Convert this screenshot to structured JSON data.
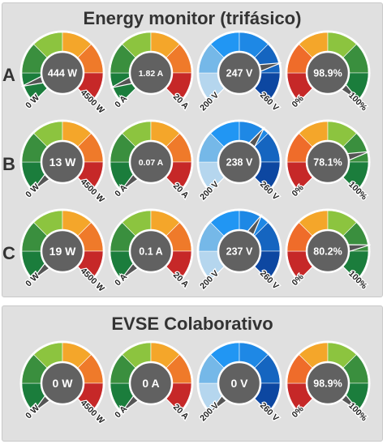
{
  "monitor": {
    "title": "Energy monitor (trifásico)",
    "rows": [
      {
        "label": "A",
        "gauges": [
          {
            "type": "power",
            "display": "444 W",
            "min_label": "0 W",
            "max_label": "4500 W",
            "fraction": 0.099
          },
          {
            "type": "current",
            "display": "1.82 A",
            "min_label": "0 A",
            "max_label": "20 A",
            "fraction": 0.091
          },
          {
            "type": "voltage",
            "display": "247 V",
            "min_label": "200 V",
            "max_label": "260 V",
            "fraction": 0.783
          },
          {
            "type": "pf",
            "display": "98.9%",
            "min_label": "0%",
            "max_label": "100%",
            "fraction": 0.989
          }
        ]
      },
      {
        "label": "B",
        "gauges": [
          {
            "type": "power",
            "display": "13 W",
            "min_label": "0 W",
            "max_label": "4500 W",
            "fraction": 0.003
          },
          {
            "type": "current",
            "display": "0.07 A",
            "min_label": "0 A",
            "max_label": "20 A",
            "fraction": 0.0035
          },
          {
            "type": "voltage",
            "display": "238 V",
            "min_label": "200 V",
            "max_label": "260 V",
            "fraction": 0.633
          },
          {
            "type": "pf",
            "display": "78.1%",
            "min_label": "0%",
            "max_label": "100%",
            "fraction": 0.781
          }
        ]
      },
      {
        "label": "C",
        "gauges": [
          {
            "type": "power",
            "display": "19 W",
            "min_label": "0 W",
            "max_label": "4500 W",
            "fraction": 0.004
          },
          {
            "type": "current",
            "display": "0.1 A",
            "min_label": "0 A",
            "max_label": "20 A",
            "fraction": 0.005
          },
          {
            "type": "voltage",
            "display": "237 V",
            "min_label": "200 V",
            "max_label": "260 V",
            "fraction": 0.617
          },
          {
            "type": "pf",
            "display": "80.2%",
            "min_label": "0%",
            "max_label": "100%",
            "fraction": 0.802
          }
        ]
      }
    ]
  },
  "evse": {
    "title": "EVSE Colaborativo",
    "gauges": [
      {
        "type": "power",
        "display": "0 W",
        "min_label": "0 W",
        "max_label": "4500 W",
        "fraction": 0
      },
      {
        "type": "current",
        "display": "0 A",
        "min_label": "0 A",
        "max_label": "20 A",
        "fraction": 0
      },
      {
        "type": "voltage",
        "display": "0 V",
        "min_label": "200 V",
        "max_label": "260 V",
        "fraction": 0
      },
      {
        "type": "pf",
        "display": "98.9%",
        "min_label": "0%",
        "max_label": "100%",
        "fraction": 0.989
      }
    ]
  },
  "colors": {
    "panel_bg": "#e0e0e0",
    "dial_center": "#616161",
    "needle": "#555555",
    "load_bands": [
      "#1b7d3c",
      "#3a8f3e",
      "#8cc43f",
      "#f4a62a",
      "#ef7a2a",
      "#c62828"
    ],
    "voltage_bands": [
      "#b5d6ee",
      "#75b8e8",
      "#2196f3",
      "#1e88e5",
      "#1565c0",
      "#0d47a1"
    ],
    "pf_bands": [
      "#c62828",
      "#ef6c2a",
      "#f4a62a",
      "#8cc43f",
      "#3a8f3e",
      "#1b7d3c"
    ]
  }
}
